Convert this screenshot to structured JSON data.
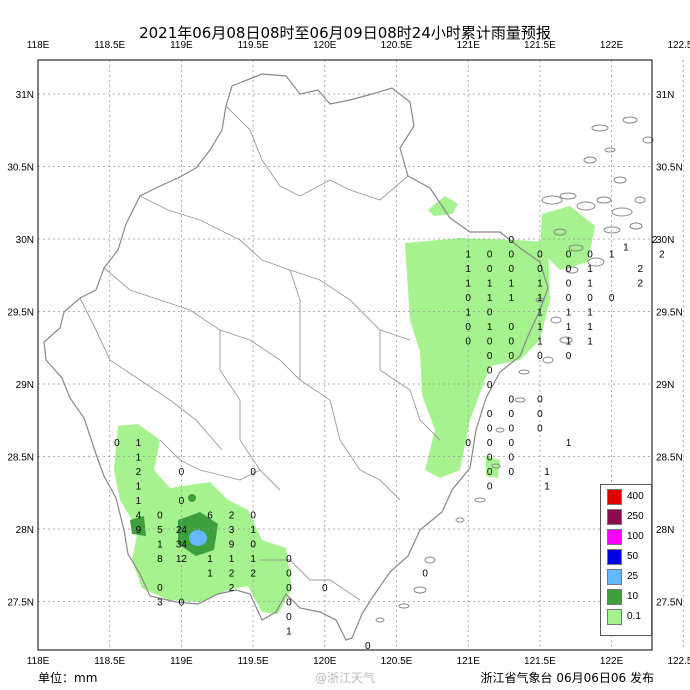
{
  "title": "2021年06月08日08时至06月09日08时24小时累计雨量预报",
  "unit_label": "单位：mm",
  "issuer": "浙江省气象台  06月06日06  发布",
  "watermark": "@浙江天气",
  "axes": {
    "lon_ticks": [
      "118E",
      "118.5E",
      "119E",
      "119.5E",
      "120E",
      "120.5E",
      "121E",
      "121.5E",
      "122E",
      "122.5E"
    ],
    "lat_ticks": [
      "31N",
      "30.5N",
      "30N",
      "29.5N",
      "29N",
      "28.5N",
      "28N",
      "27.5N"
    ]
  },
  "legend": [
    {
      "label": "400",
      "color": "#e00000"
    },
    {
      "label": "250",
      "color": "#8b0a50"
    },
    {
      "label": "100",
      "color": "#ff00ff"
    },
    {
      "label": "50",
      "color": "#0000e0"
    },
    {
      "label": "25",
      "color": "#63b8ff"
    },
    {
      "label": "10",
      "color": "#3ca03c"
    },
    {
      "label": "0.1",
      "color": "#a6f28f"
    }
  ],
  "chart_data": {
    "type": "heatmap",
    "title": "2021年06月08日08时至06月09日08时24小时累计雨量预报",
    "unit": "mm",
    "x_range": [
      118.0,
      122.8
    ],
    "y_range": [
      27.1,
      31.3
    ],
    "values": [
      {
        "lon": 121.3,
        "lat": 30.0,
        "v": "0"
      },
      {
        "lon": 121.0,
        "lat": 29.9,
        "v": "1"
      },
      {
        "lon": 121.15,
        "lat": 29.9,
        "v": "0"
      },
      {
        "lon": 121.3,
        "lat": 29.9,
        "v": "0"
      },
      {
        "lon": 121.5,
        "lat": 29.9,
        "v": "0"
      },
      {
        "lon": 121.7,
        "lat": 29.9,
        "v": "0"
      },
      {
        "lon": 121.85,
        "lat": 29.9,
        "v": "0"
      },
      {
        "lon": 122.0,
        "lat": 29.9,
        "v": "1"
      },
      {
        "lon": 122.1,
        "lat": 29.95,
        "v": "1"
      },
      {
        "lon": 122.3,
        "lat": 30.0,
        "v": "2"
      },
      {
        "lon": 122.35,
        "lat": 29.9,
        "v": "2"
      },
      {
        "lon": 121.0,
        "lat": 29.8,
        "v": "1"
      },
      {
        "lon": 121.15,
        "lat": 29.8,
        "v": "0"
      },
      {
        "lon": 121.3,
        "lat": 29.8,
        "v": "0"
      },
      {
        "lon": 121.5,
        "lat": 29.8,
        "v": "0"
      },
      {
        "lon": 121.7,
        "lat": 29.8,
        "v": "0"
      },
      {
        "lon": 121.85,
        "lat": 29.8,
        "v": "1"
      },
      {
        "lon": 122.2,
        "lat": 29.8,
        "v": "2"
      },
      {
        "lon": 121.0,
        "lat": 29.7,
        "v": "1"
      },
      {
        "lon": 121.15,
        "lat": 29.7,
        "v": "1"
      },
      {
        "lon": 121.3,
        "lat": 29.7,
        "v": "1"
      },
      {
        "lon": 121.5,
        "lat": 29.7,
        "v": "1"
      },
      {
        "lon": 121.7,
        "lat": 29.7,
        "v": "0"
      },
      {
        "lon": 121.85,
        "lat": 29.7,
        "v": "1"
      },
      {
        "lon": 122.2,
        "lat": 29.7,
        "v": "2"
      },
      {
        "lon": 121.0,
        "lat": 29.6,
        "v": "0"
      },
      {
        "lon": 121.15,
        "lat": 29.6,
        "v": "1"
      },
      {
        "lon": 121.3,
        "lat": 29.6,
        "v": "1"
      },
      {
        "lon": 121.5,
        "lat": 29.6,
        "v": "1"
      },
      {
        "lon": 121.7,
        "lat": 29.6,
        "v": "0"
      },
      {
        "lon": 121.85,
        "lat": 29.6,
        "v": "0"
      },
      {
        "lon": 122.0,
        "lat": 29.6,
        "v": "0"
      },
      {
        "lon": 121.0,
        "lat": 29.5,
        "v": "1"
      },
      {
        "lon": 121.15,
        "lat": 29.5,
        "v": "0"
      },
      {
        "lon": 121.5,
        "lat": 29.5,
        "v": "1"
      },
      {
        "lon": 121.7,
        "lat": 29.5,
        "v": "1"
      },
      {
        "lon": 121.85,
        "lat": 29.5,
        "v": "1"
      },
      {
        "lon": 121.0,
        "lat": 29.4,
        "v": "0"
      },
      {
        "lon": 121.15,
        "lat": 29.4,
        "v": "1"
      },
      {
        "lon": 121.3,
        "lat": 29.4,
        "v": "0"
      },
      {
        "lon": 121.5,
        "lat": 29.4,
        "v": "1"
      },
      {
        "lon": 121.7,
        "lat": 29.4,
        "v": "1"
      },
      {
        "lon": 121.85,
        "lat": 29.4,
        "v": "1"
      },
      {
        "lon": 121.0,
        "lat": 29.3,
        "v": "0"
      },
      {
        "lon": 121.15,
        "lat": 29.3,
        "v": "0"
      },
      {
        "lon": 121.3,
        "lat": 29.3,
        "v": "0"
      },
      {
        "lon": 121.5,
        "lat": 29.3,
        "v": "1"
      },
      {
        "lon": 121.7,
        "lat": 29.3,
        "v": "1"
      },
      {
        "lon": 121.85,
        "lat": 29.3,
        "v": "1"
      },
      {
        "lon": 121.15,
        "lat": 29.2,
        "v": "0"
      },
      {
        "lon": 121.3,
        "lat": 29.2,
        "v": "0"
      },
      {
        "lon": 121.5,
        "lat": 29.2,
        "v": "0"
      },
      {
        "lon": 121.7,
        "lat": 29.2,
        "v": "0"
      },
      {
        "lon": 121.15,
        "lat": 29.1,
        "v": "0"
      },
      {
        "lon": 121.15,
        "lat": 29.0,
        "v": "0"
      },
      {
        "lon": 121.3,
        "lat": 28.9,
        "v": "0"
      },
      {
        "lon": 121.5,
        "lat": 28.9,
        "v": "0"
      },
      {
        "lon": 121.15,
        "lat": 28.8,
        "v": "0"
      },
      {
        "lon": 121.3,
        "lat": 28.8,
        "v": "0"
      },
      {
        "lon": 121.5,
        "lat": 28.8,
        "v": "0"
      },
      {
        "lon": 121.15,
        "lat": 28.7,
        "v": "0"
      },
      {
        "lon": 121.3,
        "lat": 28.7,
        "v": "0"
      },
      {
        "lon": 121.5,
        "lat": 28.7,
        "v": "0"
      },
      {
        "lon": 121.0,
        "lat": 28.6,
        "v": "0"
      },
      {
        "lon": 121.15,
        "lat": 28.6,
        "v": "0"
      },
      {
        "lon": 121.3,
        "lat": 28.6,
        "v": "0"
      },
      {
        "lon": 121.7,
        "lat": 28.6,
        "v": "1"
      },
      {
        "lon": 121.15,
        "lat": 28.5,
        "v": "0"
      },
      {
        "lon": 121.3,
        "lat": 28.5,
        "v": "0"
      },
      {
        "lon": 121.15,
        "lat": 28.4,
        "v": "0"
      },
      {
        "lon": 121.3,
        "lat": 28.4,
        "v": "0"
      },
      {
        "lon": 121.55,
        "lat": 28.4,
        "v": "1"
      },
      {
        "lon": 121.55,
        "lat": 28.3,
        "v": "1"
      },
      {
        "lon": 121.15,
        "lat": 28.3,
        "v": "0"
      },
      {
        "lon": 118.55,
        "lat": 28.6,
        "v": "0"
      },
      {
        "lon": 118.7,
        "lat": 28.6,
        "v": "1"
      },
      {
        "lon": 118.7,
        "lat": 28.5,
        "v": "1"
      },
      {
        "lon": 118.7,
        "lat": 28.4,
        "v": "2"
      },
      {
        "lon": 119.0,
        "lat": 28.4,
        "v": "0"
      },
      {
        "lon": 119.5,
        "lat": 28.4,
        "v": "0"
      },
      {
        "lon": 118.7,
        "lat": 28.3,
        "v": "1"
      },
      {
        "lon": 118.7,
        "lat": 28.2,
        "v": "1"
      },
      {
        "lon": 119.0,
        "lat": 28.2,
        "v": "0"
      },
      {
        "lon": 118.7,
        "lat": 28.1,
        "v": "4"
      },
      {
        "lon": 118.85,
        "lat": 28.1,
        "v": "0"
      },
      {
        "lon": 119.2,
        "lat": 28.1,
        "v": "6"
      },
      {
        "lon": 119.35,
        "lat": 28.1,
        "v": "2"
      },
      {
        "lon": 119.5,
        "lat": 28.1,
        "v": "0"
      },
      {
        "lon": 118.7,
        "lat": 28.0,
        "v": "9"
      },
      {
        "lon": 118.85,
        "lat": 28.0,
        "v": "5"
      },
      {
        "lon": 119.0,
        "lat": 28.0,
        "v": "24"
      },
      {
        "lon": 119.35,
        "lat": 28.0,
        "v": "3"
      },
      {
        "lon": 119.5,
        "lat": 28.0,
        "v": "1"
      },
      {
        "lon": 118.85,
        "lat": 27.9,
        "v": "1"
      },
      {
        "lon": 119.0,
        "lat": 27.9,
        "v": "34"
      },
      {
        "lon": 119.35,
        "lat": 27.9,
        "v": "9"
      },
      {
        "lon": 119.5,
        "lat": 27.9,
        "v": "0"
      },
      {
        "lon": 118.85,
        "lat": 27.8,
        "v": "8"
      },
      {
        "lon": 119.0,
        "lat": 27.8,
        "v": "12"
      },
      {
        "lon": 119.2,
        "lat": 27.8,
        "v": "1"
      },
      {
        "lon": 119.35,
        "lat": 27.8,
        "v": "1"
      },
      {
        "lon": 119.5,
        "lat": 27.8,
        "v": "1"
      },
      {
        "lon": 119.75,
        "lat": 27.8,
        "v": "0"
      },
      {
        "lon": 119.2,
        "lat": 27.7,
        "v": "1"
      },
      {
        "lon": 119.35,
        "lat": 27.7,
        "v": "2"
      },
      {
        "lon": 119.5,
        "lat": 27.7,
        "v": "2"
      },
      {
        "lon": 119.75,
        "lat": 27.7,
        "v": "0"
      },
      {
        "lon": 118.85,
        "lat": 27.6,
        "v": "0"
      },
      {
        "lon": 119.35,
        "lat": 27.6,
        "v": "2"
      },
      {
        "lon": 119.75,
        "lat": 27.6,
        "v": "0"
      },
      {
        "lon": 120.0,
        "lat": 27.6,
        "v": "0"
      },
      {
        "lon": 118.85,
        "lat": 27.5,
        "v": "3"
      },
      {
        "lon": 119.0,
        "lat": 27.5,
        "v": "0"
      },
      {
        "lon": 119.75,
        "lat": 27.5,
        "v": "0"
      },
      {
        "lon": 119.75,
        "lat": 27.4,
        "v": "0"
      },
      {
        "lon": 119.75,
        "lat": 27.3,
        "v": "1"
      },
      {
        "lon": 120.3,
        "lat": 27.2,
        "v": "0"
      },
      {
        "lon": 120.7,
        "lat": 27.7,
        "v": "0"
      }
    ]
  }
}
